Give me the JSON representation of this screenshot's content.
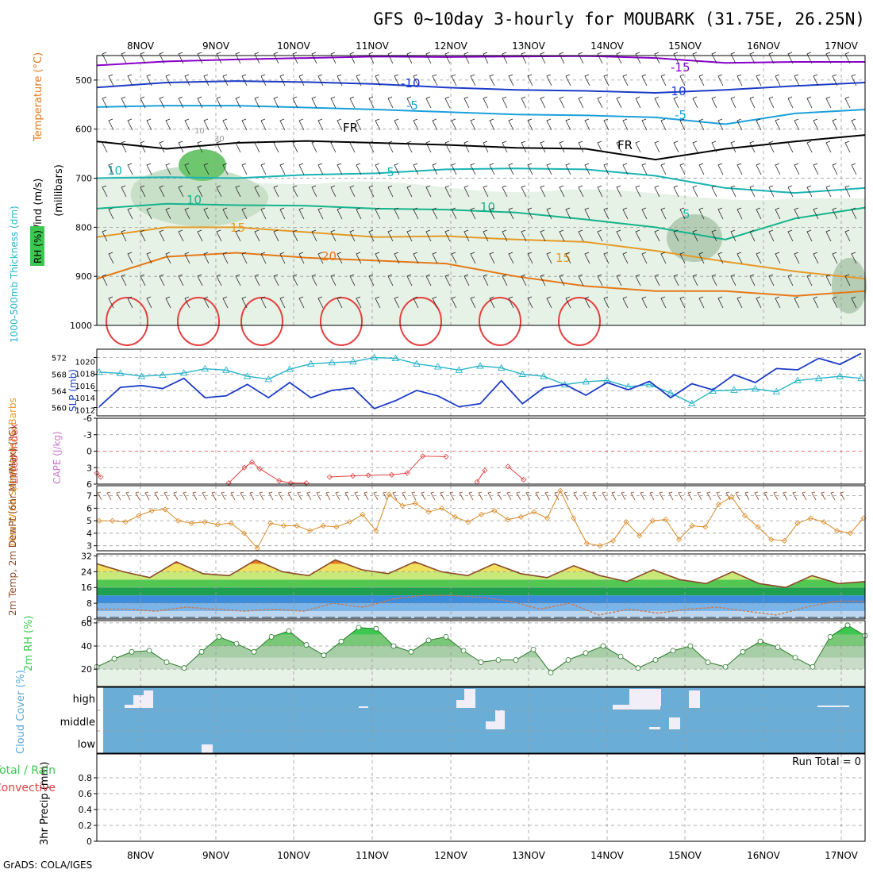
{
  "title": "GFS 0~10day 3-hourly for MOUBARK (31.75E, 26.25N)",
  "footer": "GrADS: COLA/IGES",
  "chart_data": [
    {
      "type": "line",
      "name": "upper-air cross section",
      "ylabels": [
        "Wind (m/s)",
        "Temperature (°C)",
        "RH (%)",
        "(millibars)"
      ],
      "yticks": [
        "500",
        "600",
        "700",
        "800",
        "900",
        "1000"
      ],
      "ylim": [
        450,
        1000
      ],
      "date_labels": [
        "8NOV",
        "9NOV",
        "10NOV",
        "11NOV",
        "12NOV",
        "13NOV",
        "14NOV",
        "15NOV",
        "16NOV",
        "17NOV"
      ],
      "rh_contour_labels": [
        "10",
        "30"
      ],
      "isotherms": [
        {
          "label": "-15",
          "color": "#8800cc",
          "values": [
            470,
            462,
            458,
            455,
            452,
            453,
            452,
            451,
            455,
            465,
            463,
            463
          ]
        },
        {
          "label": "-10",
          "color": "#1c3cc8",
          "values": [
            515,
            505,
            502,
            504,
            508,
            515,
            520,
            522,
            526,
            520,
            512,
            505
          ]
        },
        {
          "label": "-5",
          "color": "#1aa0dc",
          "values": [
            555,
            552,
            552,
            556,
            560,
            565,
            570,
            572,
            576,
            590,
            568,
            560
          ]
        },
        {
          "label": "FR",
          "color": "#000000",
          "values": [
            625,
            640,
            628,
            624,
            628,
            632,
            638,
            640,
            662,
            640,
            625,
            612
          ]
        },
        {
          "label": "-5",
          "color": "#1ab4b4",
          "values": [
            700,
            698,
            700,
            693,
            690,
            682,
            680,
            682,
            695,
            720,
            730,
            720
          ]
        },
        {
          "label": "10",
          "color": "#14b48c",
          "values": [
            762,
            752,
            755,
            756,
            762,
            764,
            770,
            784,
            800,
            825,
            782,
            760
          ]
        },
        {
          "label": "15",
          "color": "#e69a28",
          "values": [
            820,
            800,
            800,
            810,
            820,
            818,
            825,
            830,
            848,
            870,
            890,
            905
          ]
        },
        {
          "label": "20",
          "color": "#e67818",
          "values": [
            905,
            860,
            852,
            862,
            868,
            874,
            900,
            920,
            930,
            930,
            940,
            930
          ]
        }
      ],
      "isotherm_labels": [
        "-15",
        "-10",
        "-5",
        "FR",
        "-5",
        "10",
        "15",
        "20",
        "10",
        "-10",
        "-5",
        "FR",
        "15",
        "10",
        "5"
      ]
    },
    {
      "type": "line",
      "name": "SLP and 1000-500mb thickness",
      "ylabel_left": "1000-500mb Thickness (dm)",
      "ylabel_right": "SLP (mb)",
      "left_ticks": [
        "572",
        "568",
        "564",
        "560"
      ],
      "right_ticks": [
        "1020",
        "1018",
        "1016",
        "1014",
        "1012"
      ],
      "series": [
        {
          "name": "Thickness (dm)",
          "color": "#28b4c8",
          "ylim": [
            558,
            574
          ],
          "values": [
            568.5,
            568.2,
            567.5,
            567.8,
            568.3,
            569.3,
            569.0,
            567.5,
            566.8,
            569.2,
            570.5,
            570.8,
            571.0,
            572.0,
            571.8,
            570.5,
            569.8,
            569.0,
            570.0,
            569.5,
            568.0,
            567.5,
            565.5,
            566.2,
            566.5,
            565.0,
            565.5,
            563.5,
            561.0,
            564.0,
            564.2,
            564.5,
            563.8,
            566.5,
            567.0,
            567.5,
            567.0
          ]
        },
        {
          "name": "SLP (mb)",
          "color": "#1c3cc8",
          "ylim": [
            1011,
            1022
          ],
          "values": [
            1012.5,
            1015.7,
            1016.0,
            1015.5,
            1017.2,
            1014.0,
            1014.3,
            1016.2,
            1014.0,
            1016.5,
            1014.0,
            1015.2,
            1015.6,
            1012.2,
            1013.5,
            1015.2,
            1014.3,
            1012.5,
            1013.0,
            1016.8,
            1013.0,
            1015.6,
            1016.2,
            1014.4,
            1016.5,
            1015.3,
            1016.7,
            1014.0,
            1016.3,
            1015.3,
            1017.8,
            1016.5,
            1018.8,
            1018.6,
            1020.5,
            1019.5,
            1021.3
          ]
        }
      ]
    },
    {
      "type": "line",
      "name": "CAPE and Lifted Index",
      "ylabel_left": "Lifted Index",
      "ylabel_right": "CAPE (J/kg)",
      "yticks": [
        "-6",
        "-3",
        "0",
        "3",
        "6"
      ],
      "ylim": [
        -6,
        6
      ],
      "series": [
        {
          "name": "Lifted Index",
          "color": "#e04040",
          "x": [
            0,
            0.05,
            1.7,
            1.9,
            2.0,
            2.1,
            2.35,
            2.5,
            2.7,
            3.0,
            3.3,
            3.5,
            3.8,
            4.0,
            4.2,
            4.5,
            4.9,
            5.0,
            5.3,
            5.5
          ],
          "values": [
            4.0,
            4.7,
            5.8,
            3.0,
            2.0,
            3.2,
            5.4,
            5.8,
            5.8,
            4.7,
            4.5,
            4.4,
            4.3,
            4.0,
            0.9,
            1.0,
            5.6,
            3.5,
            2.8,
            5.2
          ]
        }
      ]
    },
    {
      "type": "line",
      "name": "10m wind speed",
      "ylabel": "10m Wind Speed (m/s) & Barbs",
      "yticks": [
        "3",
        "4",
        "5",
        "6",
        "7"
      ],
      "ylim": [
        2.6,
        7.8
      ],
      "series": [
        {
          "name": "Wind speed (m/s)",
          "color": "#d88a28",
          "values": [
            5.0,
            5.0,
            4.9,
            5.4,
            5.8,
            5.9,
            5.0,
            4.8,
            4.9,
            4.7,
            4.8,
            4.0,
            2.8,
            4.8,
            4.6,
            4.6,
            4.2,
            4.6,
            4.5,
            4.9,
            5.5,
            4.2,
            7.1,
            6.2,
            6.4,
            5.7,
            6.0,
            5.3,
            4.9,
            5.5,
            5.8,
            5.1,
            5.3,
            5.7,
            5.2,
            7.4,
            5.2,
            3.2,
            3.0,
            3.4,
            4.9,
            3.8,
            5.0,
            5.1,
            3.5,
            4.6,
            4.5,
            6.3,
            6.9,
            5.4,
            4.5,
            3.5,
            3.4,
            4.8,
            5.2,
            4.9,
            4.2,
            4.0,
            5.2
          ]
        }
      ]
    },
    {
      "type": "area",
      "name": "2m temperature and dewpoint",
      "ylabel": "2m Temp, 2m DewPt (6hr Min/Max) (°C)",
      "yticks": [
        "32",
        "24",
        "16",
        "8",
        "0"
      ],
      "ylim": [
        0,
        33
      ],
      "series": [
        {
          "name": "2m Temp (°C)",
          "color": "#8b4a28",
          "values": [
            28,
            24,
            21,
            29,
            23,
            22,
            30,
            24,
            22,
            30,
            25,
            23,
            29,
            24,
            22,
            28,
            23,
            21,
            27,
            22,
            19,
            25,
            20,
            18,
            24,
            18,
            16,
            22,
            18,
            19
          ]
        },
        {
          "name": "2m DewPt (°C)",
          "color": "#c87850",
          "values": [
            5,
            5,
            4,
            6,
            5,
            4,
            5,
            4,
            8,
            6,
            10,
            12,
            12,
            11,
            9,
            5,
            8,
            2,
            5,
            3,
            5,
            6,
            4,
            2,
            6,
            9,
            9
          ]
        }
      ]
    },
    {
      "type": "area",
      "name": "2m relative humidity",
      "ylabel": "2m RH (%)",
      "yticks": [
        "60",
        "40",
        "20"
      ],
      "ylim": [
        5,
        62
      ],
      "series": [
        {
          "name": "2m RH (%)",
          "color": "#3cc850",
          "values": [
            22,
            29,
            35,
            36,
            26,
            21,
            35,
            48,
            42,
            35,
            48,
            53,
            41,
            32,
            44,
            56,
            55,
            40,
            35,
            45,
            48,
            36,
            26,
            28,
            28,
            37,
            17,
            28,
            34,
            40,
            31,
            21,
            28,
            36,
            40,
            26,
            22,
            35,
            44,
            39,
            30,
            22,
            48,
            58,
            49
          ]
        }
      ]
    },
    {
      "type": "heatmap",
      "name": "cloud cover",
      "ylabel": "Cloud Cover (%)",
      "ytick_labels": [
        "high",
        "middle",
        "low"
      ],
      "base_color": "#6aaed8",
      "cloud_color": "#f2eef8"
    },
    {
      "type": "bar",
      "name": "3hr precipitation",
      "ylabel": "3hr Precip (mm)",
      "ylabel_left_1": "Total / Rain",
      "ylabel_left_2": "Convective",
      "yticks": [
        "0.8",
        "0.6",
        "0.4",
        "0.2",
        "0"
      ],
      "ylim": [
        0,
        1
      ],
      "run_total": "Run Total = 0",
      "values": [
        0,
        0,
        0,
        0,
        0,
        0,
        0,
        0,
        0,
        0
      ]
    }
  ]
}
